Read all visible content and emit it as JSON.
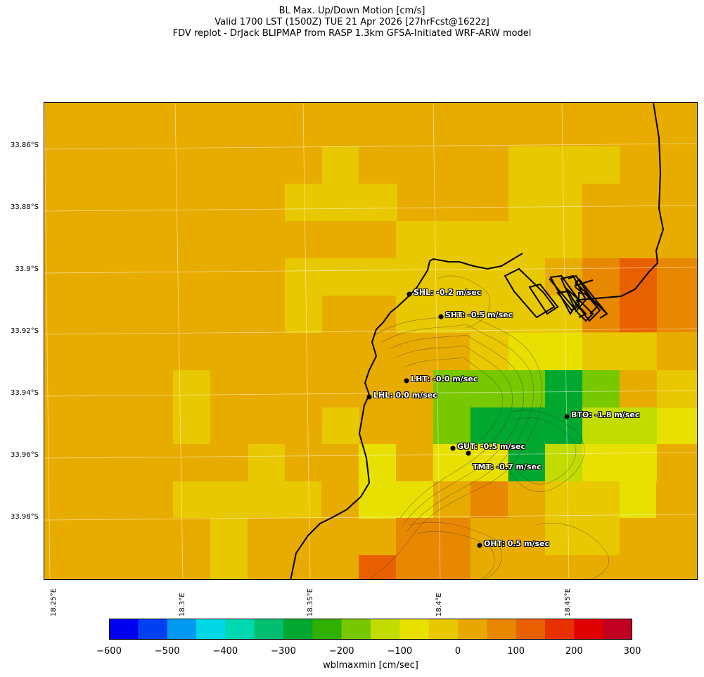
{
  "title": {
    "line1": "BL Max. Up/Down Motion [cm/s]",
    "line2": "Valid 1700 LST (1500Z) TUE 21 Apr 2026 [27hrFcst@1622z]",
    "line3": "FDV replot - DrJack BLIPMAP from RASP 1.3km GFSA-Initiated WRF-ARW model"
  },
  "lat_labels": [
    "33.86°S",
    "33.88°S",
    "33.9°S",
    "33.92°S",
    "33.94°S",
    "33.96°S",
    "33.98°S"
  ],
  "lon_labels": [
    "18.25°E",
    "18.3°E",
    "18.35°E",
    "18.4°E",
    "18.45°E"
  ],
  "stations": [
    {
      "label": "SHL: -0.2 m/sec"
    },
    {
      "label": "SHT: -0.5 m/sec"
    },
    {
      "label": "LHT: -0.0 m/sec"
    },
    {
      "label": "LHL: 0.0 m/sec"
    },
    {
      "label": "BTO: -1.8 m/sec"
    },
    {
      "label": "GUT: -0.5 m/sec"
    },
    {
      "label": "TMT: -0.7 m/sec"
    },
    {
      "label": "OHT: 0.5 m/sec"
    }
  ],
  "colorbar": {
    "label": "wblmaxmin [cm/sec]",
    "ticks": [
      "−600",
      "−500",
      "−400",
      "−300",
      "−200",
      "−100",
      "0",
      "100",
      "200",
      "300"
    ],
    "colors": [
      "#0000f0",
      "#0040f0",
      "#0098f0",
      "#00d8e8",
      "#00d8b0",
      "#00c070",
      "#00a830",
      "#30b000",
      "#78c800",
      "#c0dc00",
      "#e8e000",
      "#e8c800",
      "#e8a800",
      "#e88800",
      "#e86000",
      "#e83000",
      "#e00000",
      "#c00020"
    ]
  },
  "map_colors": {
    "base": "#e8ac00",
    "light": "#e8c800",
    "yellow": "#e8e000",
    "lime": "#c0dc00",
    "green1": "#78c800",
    "green2": "#00a830",
    "orange": "#e88800",
    "deep_orange": "#e86000"
  }
}
